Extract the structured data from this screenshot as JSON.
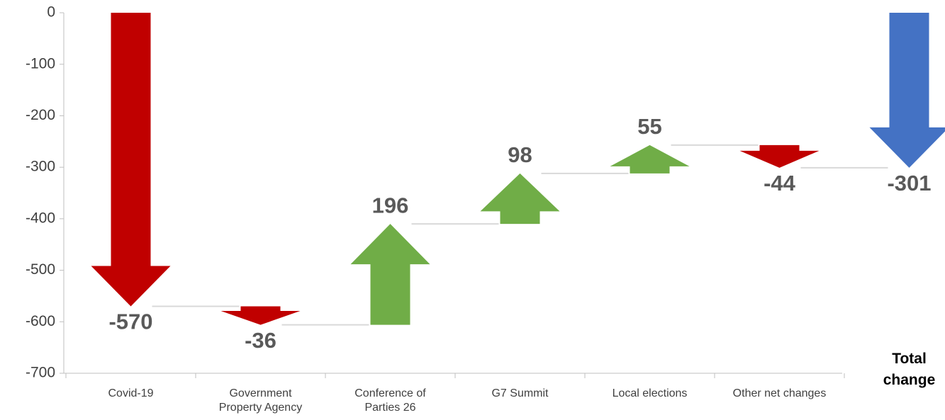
{
  "chart_data": {
    "type": "waterfall",
    "categories": [
      "Covid-19",
      "Government Property Agency",
      "Conference of Parties 26",
      "G7 Summit",
      "Local elections",
      "Other net changes"
    ],
    "values": [
      -570,
      -36,
      196,
      98,
      55,
      -44
    ],
    "total": {
      "label": "Total change",
      "value": -301
    },
    "increase_color": "#70ad47",
    "decrease_color": "#c00000",
    "total_color": "#4472c4",
    "ylim": [
      -700,
      0
    ],
    "yticks": [
      0,
      -100,
      -200,
      -300,
      -400,
      -500,
      -600,
      -700
    ]
  }
}
